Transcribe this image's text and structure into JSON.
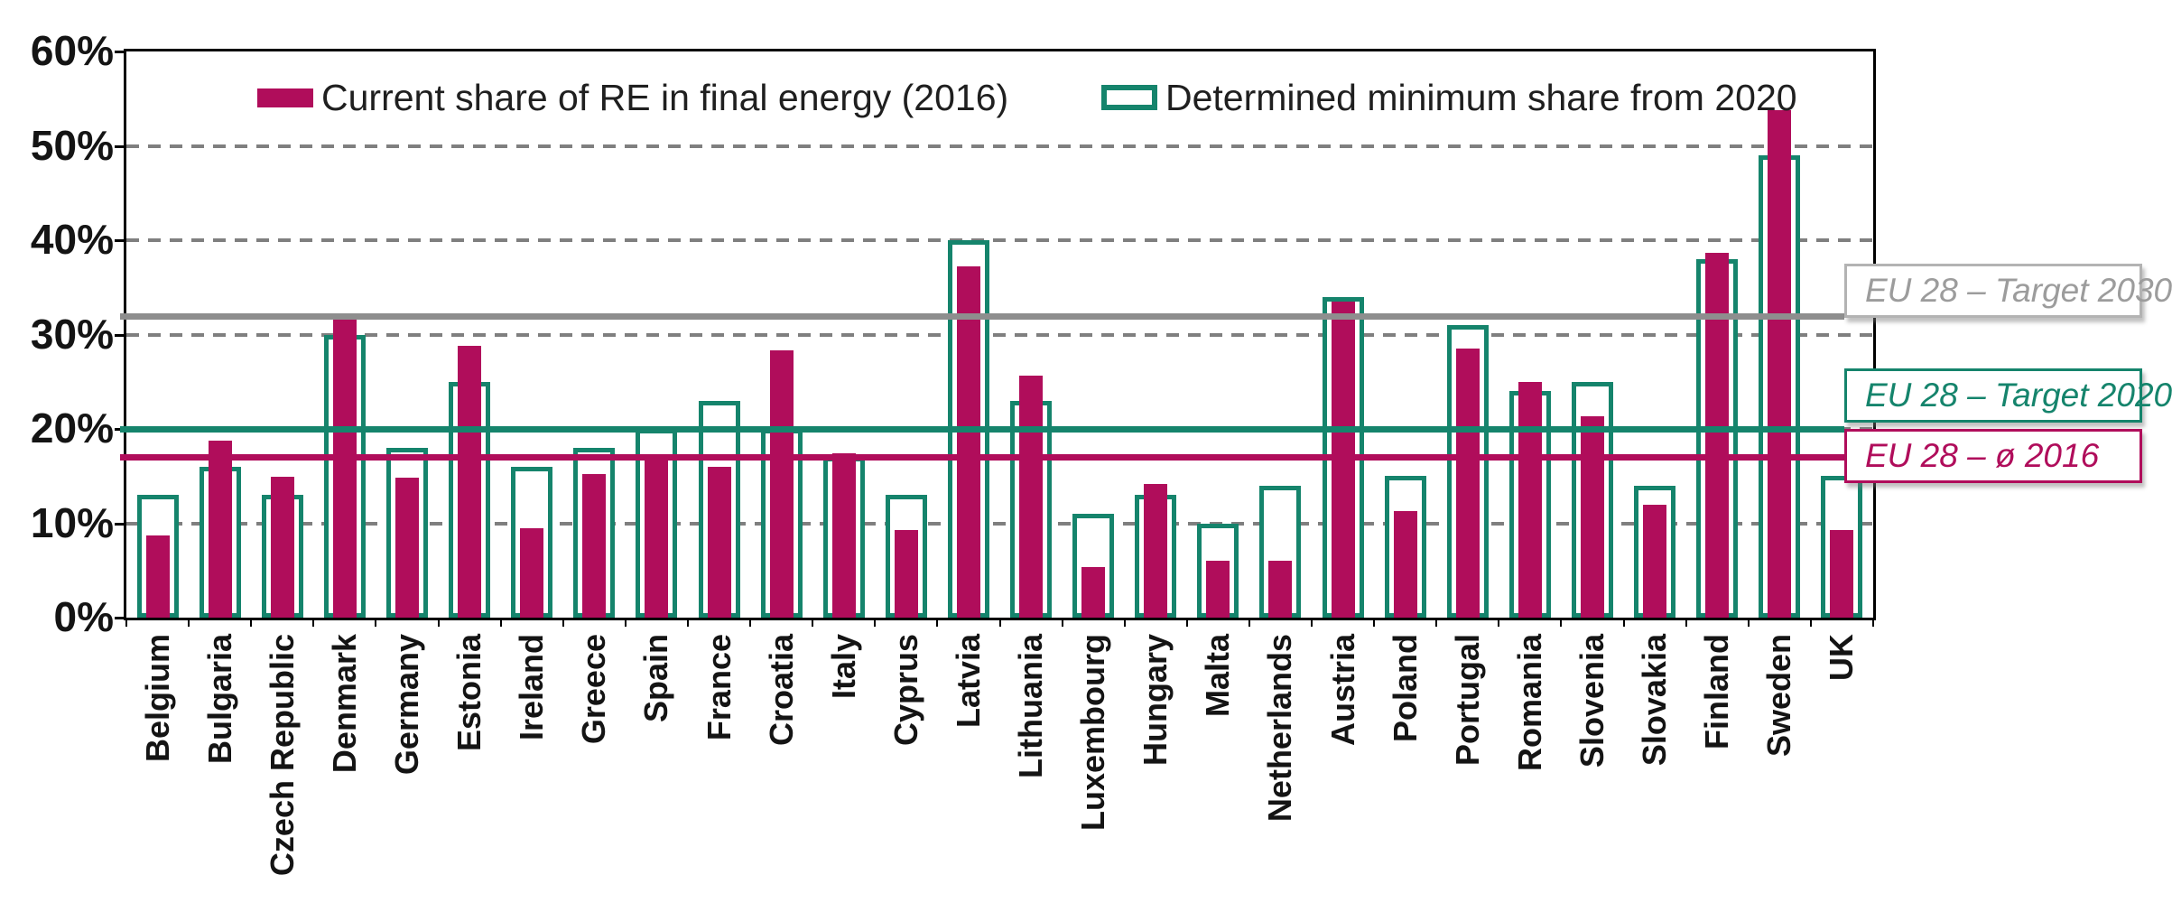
{
  "chart_data": {
    "type": "bar",
    "title": "",
    "categories": [
      "Belgium",
      "Bulgaria",
      "Czech Republic",
      "Denmark",
      "Germany",
      "Estonia",
      "Ireland",
      "Greece",
      "Spain",
      "France",
      "Croatia",
      "Italy",
      "Cyprus",
      "Latvia",
      "Lithuania",
      "Luxembourg",
      "Hungary",
      "Malta",
      "Netherlands",
      "Austria",
      "Poland",
      "Portugal",
      "Romania",
      "Slovenia",
      "Slovakia",
      "Finland",
      "Sweden",
      "UK"
    ],
    "series": [
      {
        "name": "Current share of RE in final energy (2016)",
        "style": "fill",
        "color": "#B00D5B",
        "values": [
          8.7,
          18.8,
          14.9,
          32.2,
          14.8,
          28.8,
          9.5,
          15.2,
          17.3,
          16.0,
          28.3,
          17.4,
          9.3,
          37.2,
          25.6,
          5.4,
          14.2,
          6.0,
          6.0,
          33.5,
          11.3,
          28.5,
          25.0,
          21.3,
          12.0,
          38.7,
          53.8,
          9.3
        ]
      },
      {
        "name": "Determined minimum share from 2020",
        "style": "outline",
        "color": "#15846C",
        "values": [
          13,
          16,
          13,
          30,
          18,
          25,
          16,
          18,
          20,
          23,
          20,
          17,
          13,
          40,
          23,
          11,
          13,
          10,
          14,
          34,
          15,
          31,
          24,
          25,
          14,
          38,
          49,
          15
        ]
      }
    ],
    "reference_lines": [
      {
        "label": "EU 28 – Target 2030",
        "value": 32,
        "color": "#8E8E8E"
      },
      {
        "label": "EU 28 – Target 2020",
        "value": 20,
        "color": "#15846C"
      },
      {
        "label": "EU 28 – ø 2016",
        "value": 17,
        "color": "#B00D5B"
      }
    ],
    "ylim": [
      0,
      60
    ],
    "y_ticks": [
      "0%",
      "10%",
      "20%",
      "30%",
      "40%",
      "50%",
      "60%"
    ],
    "grid": "horizontal dashed",
    "legend_position": "top-inside",
    "xlabel": "",
    "ylabel": ""
  },
  "colors": {
    "current_fill": "#B00D5B",
    "target_outline": "#15846C",
    "target_2030_line": "#8E8E8E",
    "gridline": "#7F7F7F",
    "axis": "#000000"
  }
}
